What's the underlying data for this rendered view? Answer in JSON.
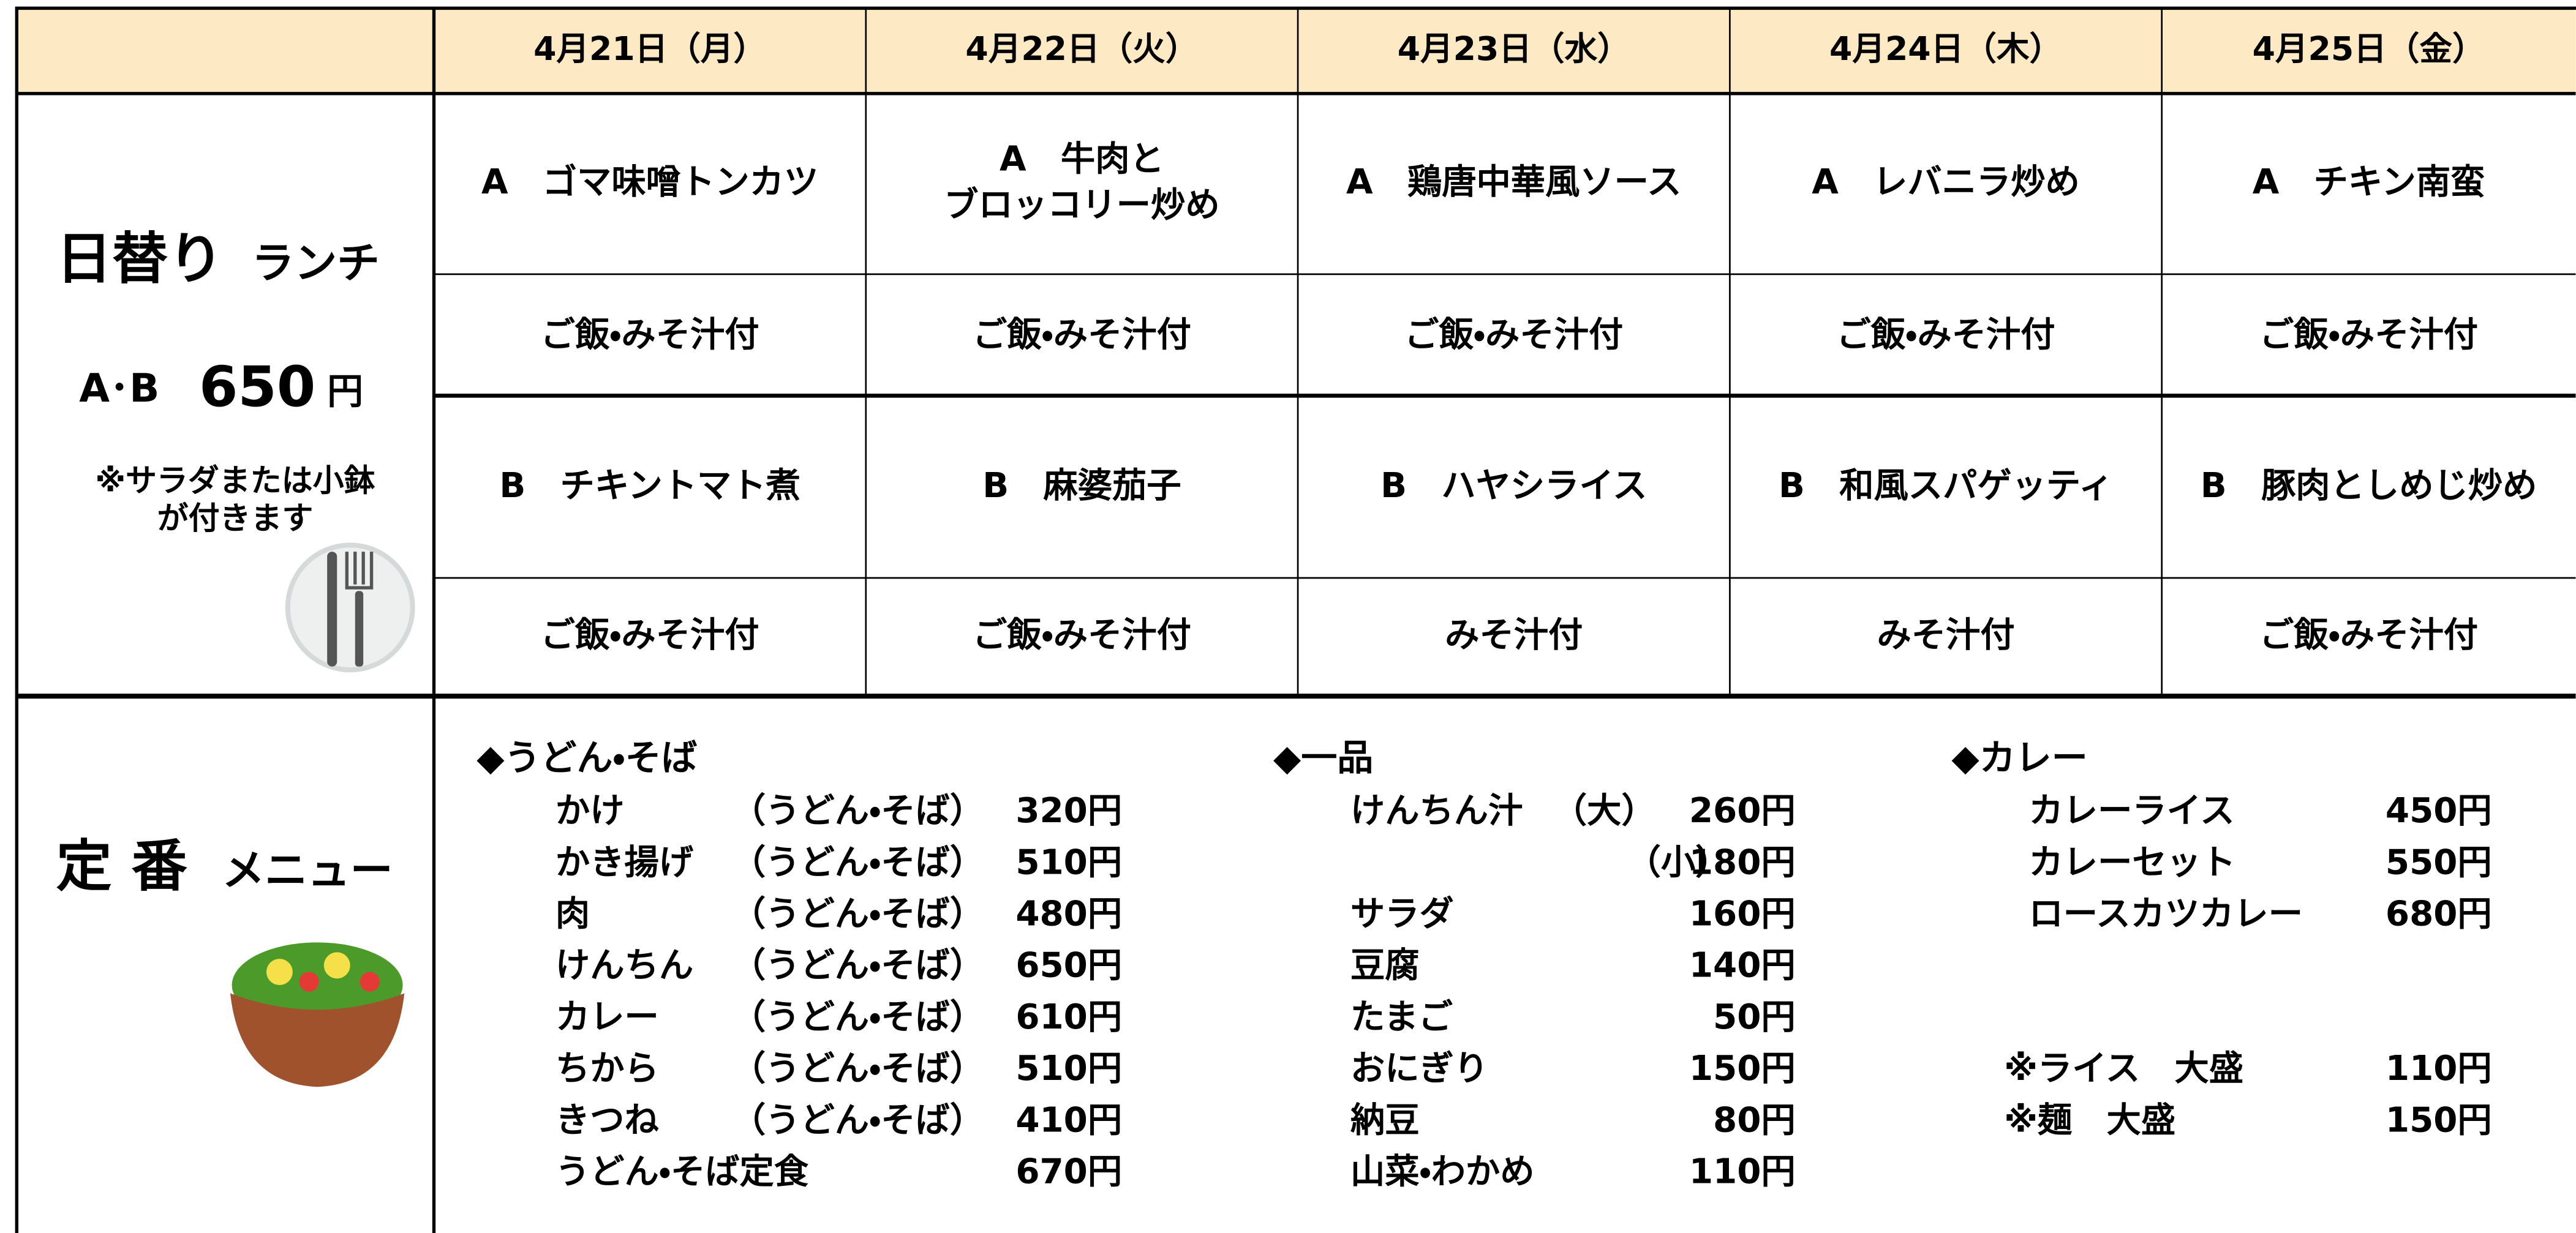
{
  "header": {
    "dates": [
      "4月21日（月）",
      "4月22日（火）",
      "4月23日（水）",
      "4月24日（木）",
      "4月25日（金）"
    ]
  },
  "daily": {
    "title": "日替り",
    "subtitle": "ランチ",
    "price_prefix": "A･B",
    "price": "650",
    "price_unit": "円",
    "note": [
      "※サラダまたは小鉢",
      "が付きます"
    ],
    "rows": [
      [
        [
          "A　ゴマ味噌トンカツ"
        ],
        [
          "A　牛肉と",
          "ブロッコリー炒め"
        ],
        [
          "A　鶏唐中華風ソース"
        ],
        [
          "A　レバニラ炒め"
        ],
        [
          "A　チキン南蛮"
        ]
      ],
      [
        [
          "ご飯・みそ汁付"
        ],
        [
          "ご飯・みそ汁付"
        ],
        [
          "ご飯・みそ汁付"
        ],
        [
          "ご飯・みそ汁付"
        ],
        [
          "ご飯・みそ汁付"
        ]
      ],
      [
        [
          "B　チキントマト煮"
        ],
        [
          "B　麻婆茄子"
        ],
        [
          "B　ハヤシライス"
        ],
        [
          "B　和風スパゲッティ"
        ],
        [
          "B　豚肉としめじ炒め"
        ]
      ],
      [
        [
          "ご飯・みそ汁付"
        ],
        [
          "ご飯・みそ汁付"
        ],
        [
          "みそ汁付"
        ],
        [
          "みそ汁付"
        ],
        [
          "ご飯・みそ汁付"
        ]
      ]
    ]
  },
  "standard": {
    "title": "定 番",
    "subtitle": "メニュー",
    "sections": [
      {
        "heading": "◆うどん・そば",
        "items": [
          {
            "name": "かけ",
            "note": "（うどん・そば）",
            "price": "320円"
          },
          {
            "name": "かき揚げ",
            "note": "（うどん・そば）",
            "price": "510円"
          },
          {
            "name": "肉",
            "note": "（うどん・そば）",
            "price": "480円"
          },
          {
            "name": "けんちん",
            "note": "（うどん・そば）",
            "price": "650円"
          },
          {
            "name": "カレー",
            "note": "（うどん・そば）",
            "price": "610円"
          },
          {
            "name": "ちから",
            "note": "（うどん・そば）",
            "price": "510円"
          },
          {
            "name": "きつね",
            "note": "（うどん・そば）",
            "price": "410円"
          },
          {
            "name": "うどん・そば定食",
            "price": "670円"
          }
        ]
      },
      {
        "heading": "◆一品",
        "items": [
          {
            "name": "けんちん汁",
            "note": "（大）",
            "price": "260円"
          },
          {
            "note": "（小）",
            "price": "180円"
          },
          {
            "name": "サラダ",
            "price": "160円"
          },
          {
            "name": "豆腐",
            "price": "140円"
          },
          {
            "name": "たまご",
            "price": "50円"
          },
          {
            "name": "おにぎり",
            "price": "150円"
          },
          {
            "name": "納豆",
            "price": "80円"
          },
          {
            "name": "山菜・わかめ",
            "price": "110円"
          }
        ]
      },
      {
        "heading": "◆カレー",
        "items": [
          {
            "name": "カレーライス",
            "price": "450円"
          },
          {
            "name": "カレーセット",
            "price": "550円"
          },
          {
            "name": "ロースカツカレー",
            "price": "680円"
          }
        ],
        "extras": [
          {
            "name": "※ライス　大盛",
            "price": "110円"
          },
          {
            "name": "※麺　大盛",
            "price": "150円"
          }
        ]
      }
    ]
  }
}
